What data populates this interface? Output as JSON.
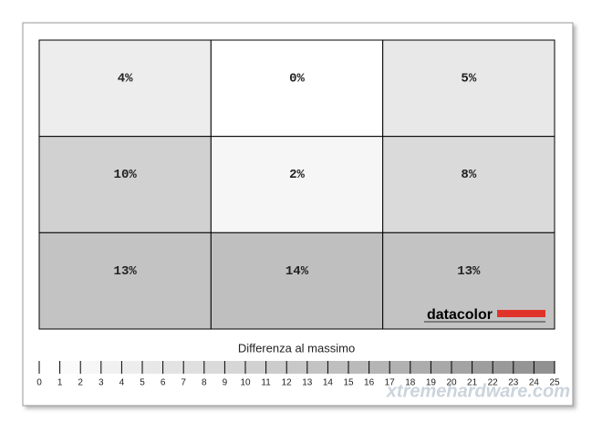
{
  "chart_data": {
    "type": "heatmap",
    "values": [
      [
        4,
        0,
        5
      ],
      [
        10,
        2,
        8
      ],
      [
        13,
        14,
        13
      ]
    ],
    "value_labels": [
      [
        "4%",
        "0%",
        "5%"
      ],
      [
        "10%",
        "2%",
        "8%"
      ],
      [
        "13%",
        "14%",
        "13%"
      ]
    ],
    "colorbar": {
      "title": "Differenza al massimo",
      "lim": [
        0,
        25
      ],
      "ticks": [
        0,
        1,
        2,
        3,
        4,
        5,
        6,
        7,
        8,
        9,
        10,
        11,
        12,
        13,
        14,
        15,
        16,
        17,
        18,
        19,
        20,
        21,
        22,
        23,
        24,
        25
      ]
    },
    "logo": "datacolor",
    "watermark": "xtremehardware.com"
  }
}
